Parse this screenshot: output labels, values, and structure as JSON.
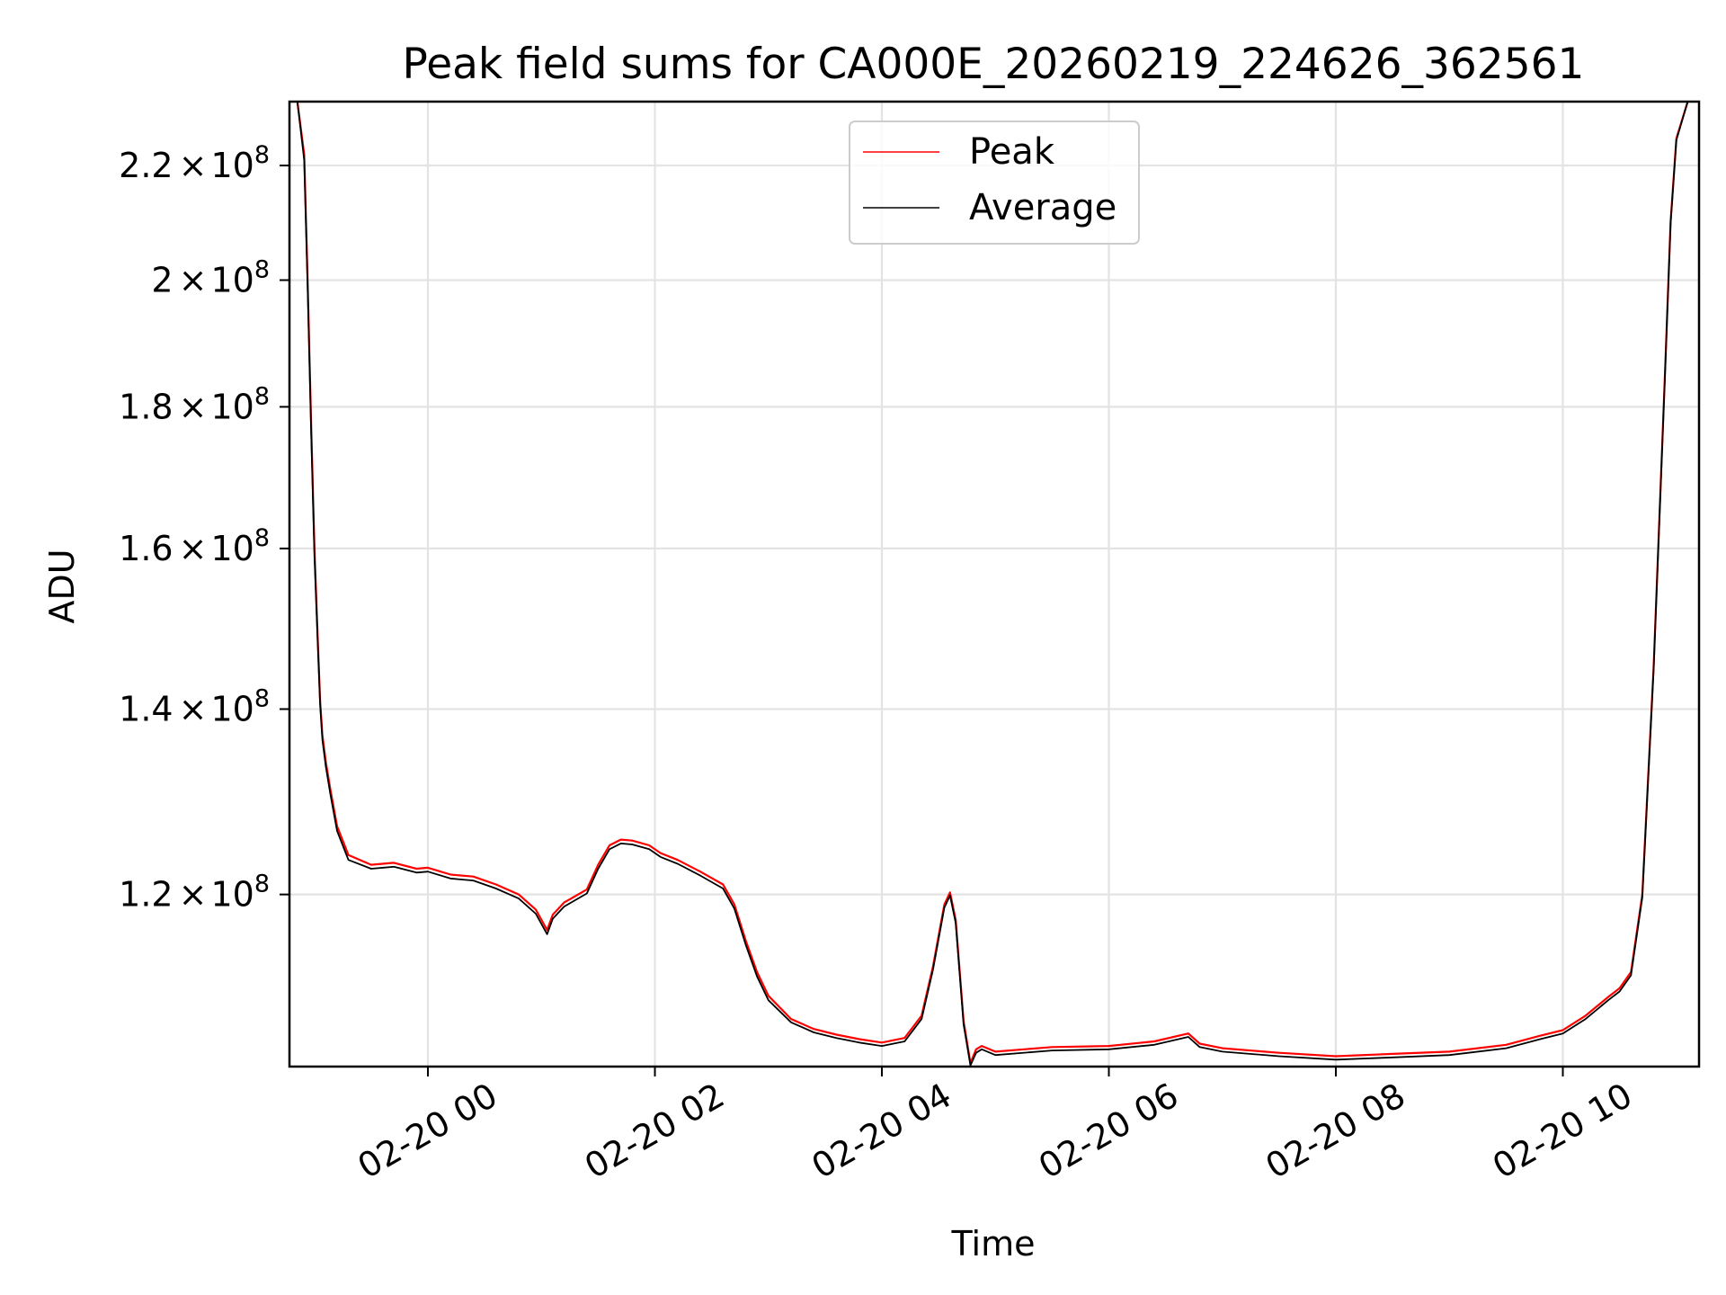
{
  "chart_data": {
    "type": "line",
    "title": "Peak field sums for CA000E_20260219_224626_362561",
    "xlabel": "Time",
    "ylabel": "ADU",
    "x_unit": "hours since 02-20 00:00",
    "xlim": [
      -1.22,
      11.2
    ],
    "ylim": [
      104000000,
      232000000
    ],
    "y_scale": "log",
    "grid": true,
    "legend_position": "top-center",
    "x_ticks": [
      {
        "value": 0,
        "label": "02-20 00"
      },
      {
        "value": 2,
        "label": "02-20 02"
      },
      {
        "value": 4,
        "label": "02-20 04"
      },
      {
        "value": 6,
        "label": "02-20 06"
      },
      {
        "value": 8,
        "label": "02-20 08"
      },
      {
        "value": 10,
        "label": "02-20 10"
      }
    ],
    "y_ticks": [
      {
        "value": 120000000,
        "mantissa": "1.2",
        "times": "×",
        "base": "10",
        "exp": "8"
      },
      {
        "value": 140000000,
        "mantissa": "1.4",
        "times": "×",
        "base": "10",
        "exp": "8"
      },
      {
        "value": 160000000,
        "mantissa": "1.6",
        "times": "×",
        "base": "10",
        "exp": "8"
      },
      {
        "value": 180000000,
        "mantissa": "1.8",
        "times": "×",
        "base": "10",
        "exp": "8"
      },
      {
        "value": 200000000,
        "mantissa": "2",
        "times": "×",
        "base": "10",
        "exp": "8"
      },
      {
        "value": 220000000,
        "mantissa": "2.2",
        "times": "×",
        "base": "10",
        "exp": "8"
      }
    ],
    "series": [
      {
        "name": "Peak",
        "color": "#ff0000",
        "x": [
          -1.15,
          -1.09,
          -1.06,
          -1.03,
          -1.0,
          -0.97,
          -0.95,
          -0.93,
          -0.9,
          -0.86,
          -0.8,
          -0.7,
          -0.5,
          -0.3,
          -0.1,
          0.0,
          0.2,
          0.4,
          0.6,
          0.8,
          0.95,
          1.05,
          1.1,
          1.2,
          1.4,
          1.5,
          1.6,
          1.7,
          1.8,
          1.95,
          2.05,
          2.2,
          2.4,
          2.6,
          2.7,
          2.8,
          2.9,
          3.0,
          3.2,
          3.4,
          3.6,
          3.8,
          4.0,
          4.2,
          4.35,
          4.45,
          4.55,
          4.6,
          4.65,
          4.72,
          4.78,
          4.83,
          4.88,
          5.0,
          5.5,
          6.0,
          6.4,
          6.7,
          6.8,
          7.0,
          7.5,
          8.0,
          8.5,
          9.0,
          9.5,
          9.8,
          10.0,
          10.2,
          10.4,
          10.5,
          10.6,
          10.7,
          10.8,
          10.9,
          10.95,
          11.0,
          11.1
        ],
        "y": [
          232000000,
          222000000,
          200000000,
          178000000,
          160000000,
          148000000,
          141000000,
          137000000,
          134000000,
          131000000,
          127000000,
          124000000,
          123000000,
          123200000,
          122600000,
          122700000,
          122000000,
          121800000,
          121000000,
          120000000,
          118500000,
          116500000,
          118000000,
          119200000,
          120500000,
          123000000,
          125000000,
          125600000,
          125500000,
          125000000,
          124200000,
          123500000,
          122300000,
          121000000,
          119000000,
          115500000,
          112500000,
          110300000,
          108200000,
          107300000,
          106800000,
          106400000,
          106100000,
          106500000,
          108500000,
          113000000,
          119000000,
          120200000,
          117500000,
          108000000,
          104300000,
          105500000,
          105800000,
          105300000,
          105700000,
          105800000,
          106200000,
          106900000,
          106000000,
          105600000,
          105200000,
          104900000,
          105100000,
          105300000,
          105900000,
          106700000,
          107200000,
          108500000,
          110200000,
          111000000,
          112500000,
          120000000,
          145000000,
          185000000,
          210000000,
          225000000,
          232000000
        ]
      },
      {
        "name": "Average",
        "color": "#000000",
        "x": [
          -1.15,
          -1.09,
          -1.06,
          -1.03,
          -1.0,
          -0.97,
          -0.95,
          -0.93,
          -0.9,
          -0.86,
          -0.8,
          -0.7,
          -0.5,
          -0.3,
          -0.1,
          0.0,
          0.2,
          0.4,
          0.6,
          0.8,
          0.95,
          1.05,
          1.1,
          1.2,
          1.4,
          1.5,
          1.6,
          1.7,
          1.8,
          1.95,
          2.05,
          2.2,
          2.4,
          2.6,
          2.7,
          2.8,
          2.9,
          3.0,
          3.2,
          3.4,
          3.6,
          3.8,
          4.0,
          4.2,
          4.35,
          4.45,
          4.55,
          4.6,
          4.65,
          4.72,
          4.78,
          4.83,
          4.88,
          5.0,
          5.5,
          6.0,
          6.4,
          6.7,
          6.8,
          7.0,
          7.5,
          8.0,
          8.5,
          9.0,
          9.5,
          9.8,
          10.0,
          10.2,
          10.4,
          10.5,
          10.6,
          10.7,
          10.8,
          10.9,
          10.95,
          11.0,
          11.1
        ],
        "y": [
          232000000,
          221000000,
          199000000,
          177000000,
          159000000,
          147500000,
          140500000,
          136500000,
          133500000,
          130500000,
          126500000,
          123500000,
          122600000,
          122800000,
          122200000,
          122300000,
          121600000,
          121400000,
          120600000,
          119600000,
          118100000,
          116100000,
          117600000,
          118800000,
          120100000,
          122600000,
          124600000,
          125200000,
          125100000,
          124600000,
          123800000,
          123100000,
          121900000,
          120600000,
          118600000,
          115100000,
          112100000,
          109900000,
          107900000,
          107000000,
          106500000,
          106100000,
          105800000,
          106200000,
          108200000,
          112700000,
          118700000,
          119900000,
          117200000,
          107700000,
          104100000,
          105200000,
          105500000,
          105000000,
          105400000,
          105500000,
          105900000,
          106600000,
          105700000,
          105300000,
          104900000,
          104600000,
          104800000,
          105000000,
          105600000,
          106400000,
          106900000,
          108200000,
          109900000,
          110700000,
          112200000,
          119700000,
          144700000,
          184700000,
          209700000,
          224700000,
          232000000
        ]
      }
    ]
  }
}
